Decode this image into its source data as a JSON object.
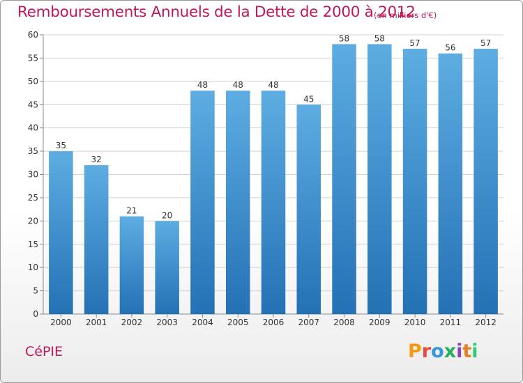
{
  "title": "Remboursements Annuels de la Dette de 2000 à 2012",
  "title_unit": "(en milliers d'€)",
  "footer": {
    "commune": "CéPIE",
    "logo_text": "Proxiti",
    "logo_colors": [
      "#f39c12",
      "#e74c3c",
      "#3498db",
      "#27ae60",
      "#8e44ad",
      "#e67e22",
      "#2ecc71"
    ]
  },
  "colors": {
    "title": "#c2185b",
    "bar_top": "#5dade2",
    "bar_bottom": "#2471b5",
    "grid": "#d0d0d0"
  },
  "chart_data": {
    "type": "bar",
    "categories": [
      "2000",
      "2001",
      "2002",
      "2003",
      "2004",
      "2005",
      "2006",
      "2007",
      "2008",
      "2009",
      "2010",
      "2011",
      "2012"
    ],
    "values": [
      35,
      32,
      21,
      20,
      48,
      48,
      48,
      45,
      58,
      58,
      57,
      56,
      57
    ],
    "ylim": [
      0,
      60
    ],
    "yticks": [
      0,
      5,
      10,
      15,
      20,
      25,
      30,
      35,
      40,
      45,
      50,
      55,
      60
    ],
    "grid": true,
    "data_labels": true
  }
}
